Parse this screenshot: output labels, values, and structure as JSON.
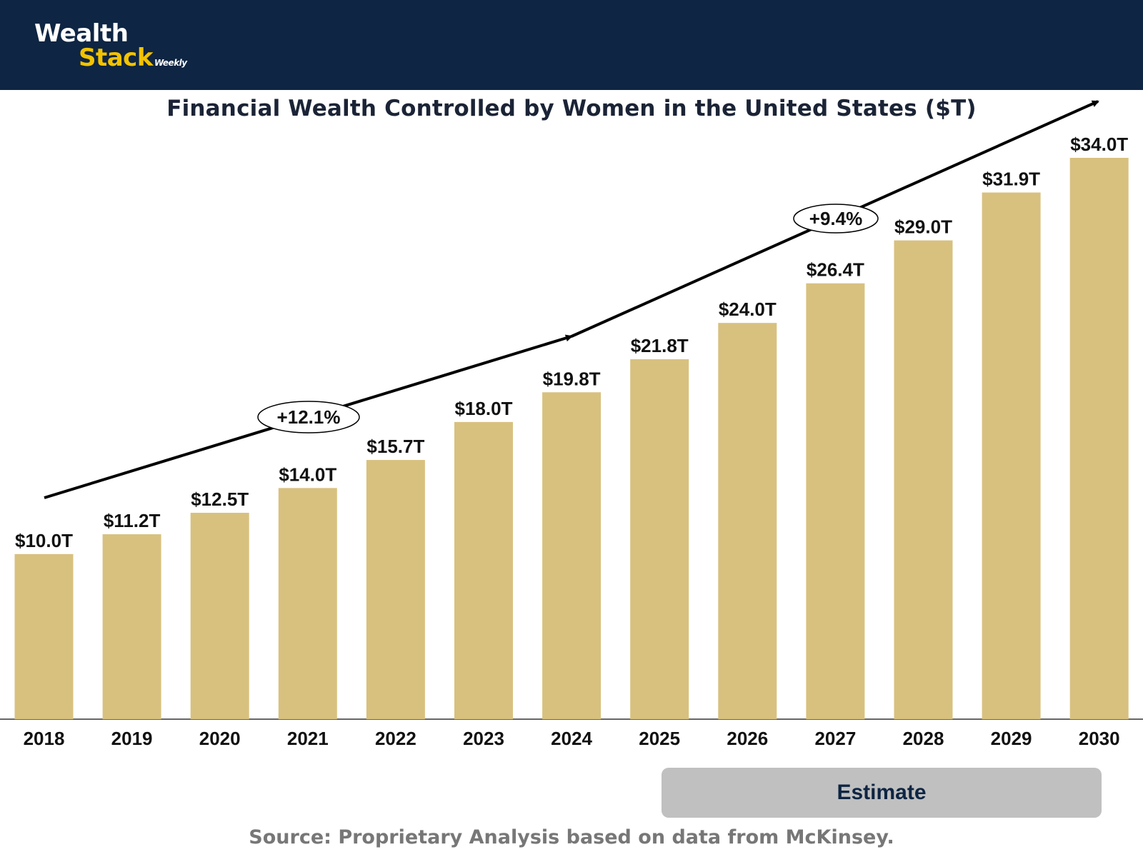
{
  "brand": {
    "line1": "Wealth",
    "line2": "Stack",
    "suffix": "Weekly",
    "bg_color": "#0e2543",
    "accent_color": "#f2c300"
  },
  "chart_data": {
    "type": "bar",
    "title": "Financial Wealth Controlled by Women in the United States ($T)",
    "categories": [
      "2018",
      "2019",
      "2020",
      "2021",
      "2022",
      "2023",
      "2024",
      "2025",
      "2026",
      "2027",
      "2028",
      "2029",
      "2030"
    ],
    "values": [
      10.0,
      11.2,
      12.5,
      14.0,
      15.7,
      18.0,
      19.8,
      21.8,
      24.0,
      26.4,
      29.0,
      31.9,
      34.0
    ],
    "labels": [
      "$10.0T",
      "$11.2T",
      "$12.5T",
      "$14.0T",
      "$15.7T",
      "$18.0T",
      "$19.8T",
      "$21.8T",
      "$24.0T",
      "$26.4T",
      "$29.0T",
      "$31.9T",
      "$34.0T"
    ],
    "bar_color": "#d8c17f",
    "xlabel": "",
    "ylabel": "",
    "ylim": [
      0,
      34.0
    ],
    "grid": false,
    "annotations": [
      {
        "label": "+12.1%",
        "period": "2018-2024",
        "kind": "CAGR arrow"
      },
      {
        "label": "+9.4%",
        "period": "2024-2030",
        "kind": "CAGR arrow"
      }
    ],
    "estimate_label": "Estimate",
    "estimate_range": [
      "2025",
      "2030"
    ]
  },
  "footer": {
    "source": "Source: Proprietary Analysis based on data from McKinsey."
  }
}
